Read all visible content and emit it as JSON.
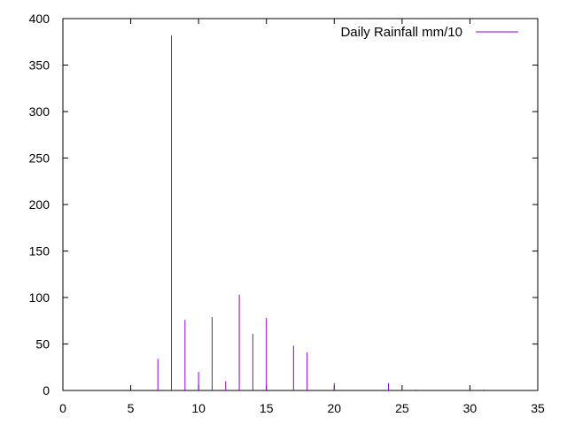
{
  "chart_data": {
    "type": "bar",
    "legend": {
      "label": "Daily Rainfall mm/10",
      "position": "top-right"
    },
    "series": [
      {
        "name": "Daily Rainfall mm/10",
        "color": "#9400d3",
        "x": [
          7,
          8,
          9,
          10,
          11,
          12,
          13,
          14,
          15,
          17,
          18,
          20,
          24,
          25,
          26,
          31
        ],
        "y": [
          34,
          382,
          76,
          20,
          79,
          10,
          103,
          61,
          78,
          48,
          41,
          8,
          8,
          2,
          1,
          1
        ]
      }
    ],
    "xlim": [
      0,
      35
    ],
    "ylim": [
      0,
      400
    ],
    "xticks": [
      0,
      5,
      10,
      15,
      20,
      25,
      30,
      35
    ],
    "yticks": [
      0,
      50,
      100,
      150,
      200,
      250,
      300,
      350,
      400
    ],
    "grid": false
  }
}
